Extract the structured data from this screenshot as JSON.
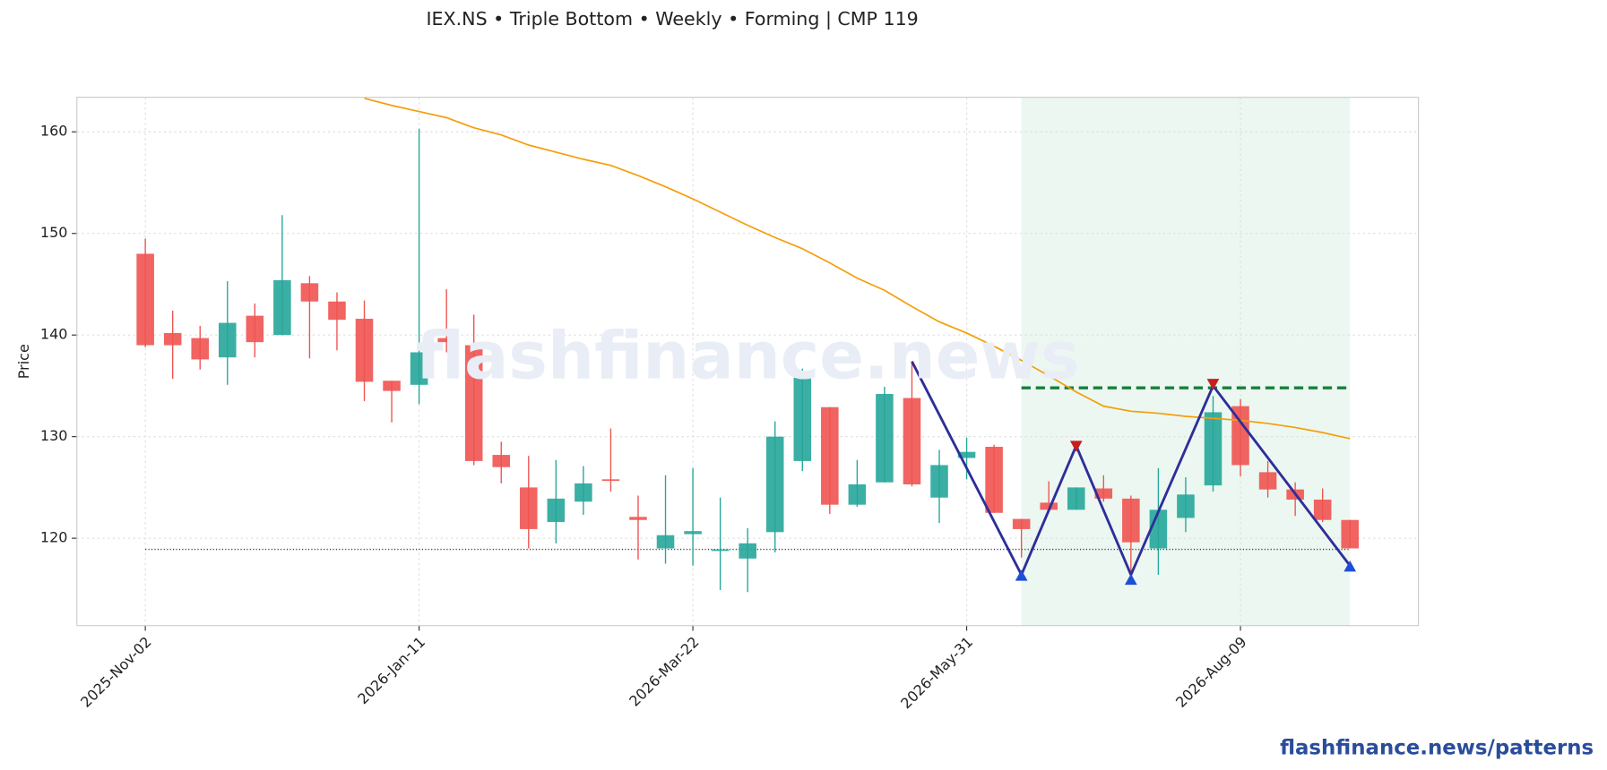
{
  "chart_data": {
    "type": "candlestick",
    "title": "IEX.NS  •  Triple Bottom  •  Weekly  •  Forming  |  CMP 119",
    "ylabel": "Price",
    "watermark": "flashfinance.news",
    "footer": "flashfinance.news/patterns",
    "x": [
      "2025-Nov-02",
      "2025-Nov-09",
      "2025-Nov-16",
      "2025-Nov-23",
      "2025-Nov-30",
      "2025-Dec-07",
      "2025-Dec-14",
      "2025-Dec-21",
      "2025-Dec-28",
      "2026-Jan-04",
      "2026-Jan-11",
      "2026-Jan-18",
      "2026-Jan-25",
      "2026-Feb-01",
      "2026-Feb-08",
      "2026-Feb-15",
      "2026-Feb-22",
      "2026-Mar-01",
      "2026-Mar-08",
      "2026-Mar-15",
      "2026-Mar-22",
      "2026-Mar-29",
      "2026-Apr-05",
      "2026-Apr-12",
      "2026-Apr-19",
      "2026-Apr-26",
      "2026-May-03",
      "2026-May-10",
      "2026-May-17",
      "2026-May-24",
      "2026-May-31",
      "2026-Jun-07",
      "2026-Jun-14",
      "2026-Jun-21",
      "2026-Jun-28",
      "2026-Jul-05",
      "2026-Jul-12",
      "2026-Jul-19",
      "2026-Jul-26",
      "2026-Aug-02",
      "2026-Aug-09",
      "2026-Aug-16",
      "2026-Aug-23",
      "2026-Aug-30",
      "2026-Sep-06"
    ],
    "open": [
      148.0,
      140.2,
      139.7,
      137.8,
      141.9,
      140.0,
      145.1,
      143.3,
      141.6,
      135.5,
      135.1,
      139.7,
      139.0,
      128.2,
      125.0,
      121.6,
      123.6,
      125.8,
      122.1,
      119.0,
      120.4,
      118.8,
      118.0,
      120.6,
      127.6,
      132.9,
      123.3,
      125.5,
      133.8,
      124.0,
      127.9,
      129.0,
      121.9,
      123.5,
      122.8,
      124.9,
      123.9,
      119.0,
      122.0,
      125.2,
      133.0,
      126.5,
      124.8,
      123.8,
      121.8
    ],
    "high": [
      149.5,
      142.4,
      140.9,
      145.3,
      143.1,
      151.8,
      145.8,
      144.2,
      143.4,
      135.5,
      160.3,
      144.5,
      142.0,
      129.5,
      128.1,
      127.7,
      127.1,
      130.8,
      124.2,
      126.2,
      126.9,
      124.0,
      121.0,
      131.5,
      136.7,
      132.9,
      127.7,
      134.9,
      137.4,
      128.7,
      129.9,
      129.2,
      121.9,
      125.6,
      125.0,
      126.2,
      124.2,
      126.9,
      126.0,
      134.0,
      133.7,
      127.6,
      125.5,
      124.9,
      121.8
    ],
    "low": [
      138.8,
      135.7,
      136.6,
      135.1,
      137.8,
      140.0,
      137.7,
      138.5,
      133.5,
      131.4,
      133.2,
      138.3,
      127.2,
      125.4,
      119.0,
      119.5,
      122.3,
      124.6,
      117.9,
      117.5,
      117.3,
      114.9,
      114.7,
      118.6,
      126.6,
      122.4,
      123.1,
      125.5,
      125.1,
      121.5,
      125.8,
      122.5,
      118.1,
      122.8,
      122.8,
      123.6,
      116.3,
      116.4,
      120.6,
      124.6,
      126.1,
      124.0,
      122.2,
      121.6,
      119.0
    ],
    "close": [
      139.0,
      139.0,
      137.6,
      141.2,
      139.3,
      145.4,
      143.3,
      141.5,
      135.4,
      134.5,
      138.3,
      139.3,
      127.6,
      127.0,
      120.9,
      123.9,
      125.4,
      125.7,
      121.8,
      120.3,
      120.7,
      118.9,
      119.5,
      130.0,
      135.8,
      123.3,
      125.3,
      134.2,
      125.3,
      127.2,
      128.5,
      122.5,
      120.9,
      122.8,
      125.0,
      123.9,
      119.6,
      122.8,
      124.3,
      132.4,
      127.2,
      124.8,
      123.8,
      121.8,
      119.0
    ],
    "up_color": "#26a69a",
    "down_color": "#ef5350",
    "ma": {
      "color": "#f59e0b",
      "values": [
        null,
        null,
        null,
        null,
        null,
        null,
        null,
        null,
        163.3,
        162.6,
        162.0,
        161.4,
        160.4,
        159.7,
        158.7,
        158.0,
        157.3,
        156.7,
        155.7,
        154.6,
        153.4,
        152.1,
        150.8,
        149.6,
        148.5,
        147.1,
        145.6,
        144.4,
        142.8,
        141.3,
        140.2,
        138.9,
        137.5,
        136.0,
        134.4,
        133.0,
        132.5,
        132.3,
        132.0,
        131.8,
        131.6,
        131.3,
        130.9,
        130.4,
        129.8
      ]
    },
    "zone": {
      "from": "2026-Jun-14",
      "to": "2026-Sep-06",
      "color": "#e6f4ec"
    },
    "cmp_line": {
      "value": 118.9,
      "from": "2025-Nov-02",
      "to": "2026-Sep-06",
      "color": "#333333"
    },
    "neckline": {
      "value": 134.8,
      "from": "2026-Jun-14",
      "to": "2026-Sep-06",
      "color": "#15803d"
    },
    "pattern": {
      "color": "#2e2e9a",
      "x": [
        "2026-May-17",
        "2026-Jun-14",
        "2026-Jun-28",
        "2026-Jul-12",
        "2026-Aug-02",
        "2026-Sep-06"
      ],
      "values": [
        137.4,
        116.4,
        129.1,
        116.4,
        135.0,
        117.3
      ]
    },
    "troughs": {
      "color": "#1d4ed8",
      "x": [
        "2026-Jun-14",
        "2026-Jul-12",
        "2026-Sep-06"
      ],
      "values": [
        116.3,
        115.9,
        117.2
      ]
    },
    "peaks": {
      "color": "#c81e1e",
      "x": [
        "2026-Jun-28",
        "2026-Aug-02"
      ],
      "values": [
        129.1,
        135.2
      ]
    },
    "ylim": [
      111.4,
      163.4
    ],
    "yticks": [
      120,
      130,
      140,
      150,
      160
    ],
    "xticks": [
      "2025-Nov-02",
      "2026-Jan-11",
      "2026-Mar-22",
      "2026-May-31",
      "2026-Aug-09"
    ],
    "grid": true
  }
}
